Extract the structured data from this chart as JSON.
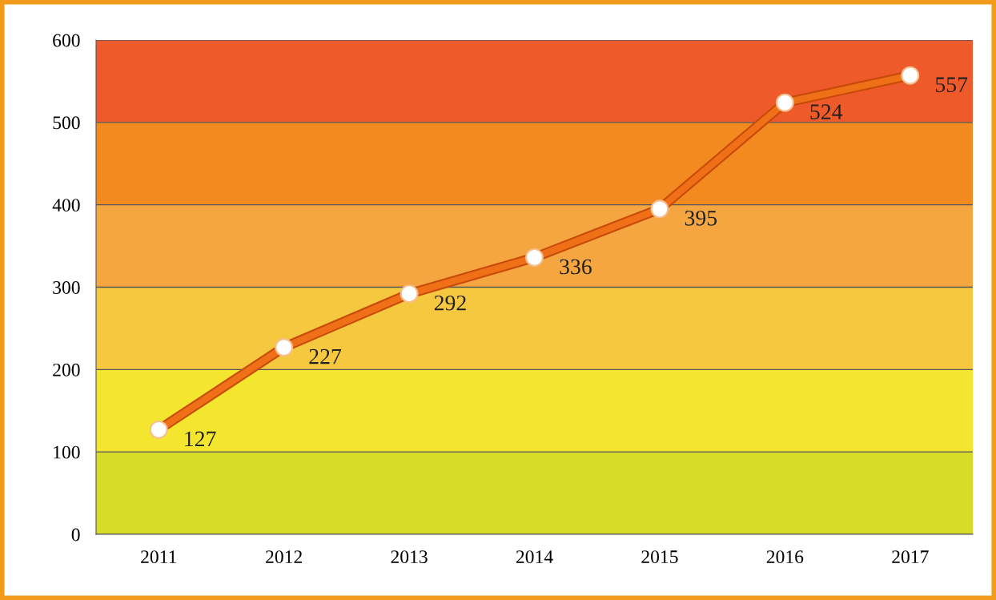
{
  "chart_data": {
    "type": "line",
    "categories": [
      "2011",
      "2012",
      "2013",
      "2014",
      "2015",
      "2016",
      "2017"
    ],
    "series": [
      {
        "color": "#f07018",
        "values": [
          127,
          227,
          292,
          336,
          395,
          524,
          557
        ]
      }
    ],
    "ylim": [
      0,
      600
    ],
    "yticks": [
      0,
      100,
      200,
      300,
      400,
      500,
      600
    ],
    "bands": [
      {
        "axis": "y",
        "from": 0,
        "to": 100,
        "color": "#d6dc28"
      },
      {
        "axis": "y",
        "from": 100,
        "to": 200,
        "color": "#f4e62e"
      },
      {
        "axis": "y",
        "from": 200,
        "to": 300,
        "color": "#f5c840"
      },
      {
        "axis": "y",
        "from": 300,
        "to": 400,
        "color": "#f5a640"
      },
      {
        "axis": "y",
        "from": 400,
        "to": 500,
        "color": "#f38a20"
      },
      {
        "axis": "y",
        "from": 500,
        "to": 600,
        "color": "#ee5a2a"
      }
    ],
    "grid": "y",
    "marker": "circle",
    "line_style": "solid",
    "data_labels": true
  }
}
